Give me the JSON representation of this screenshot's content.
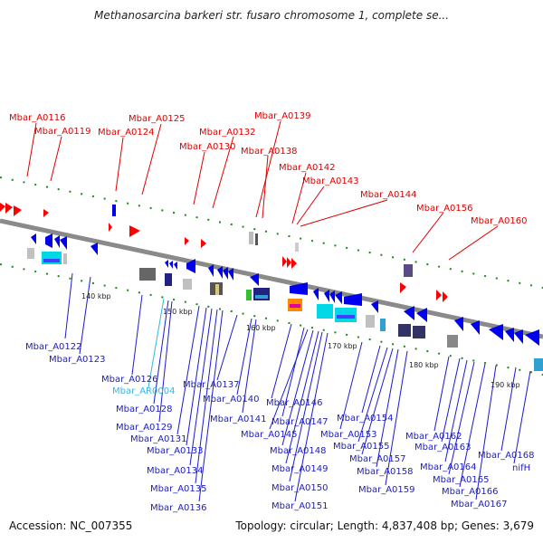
{
  "title": "Methanosarcina barkeri str. fusaro chromosome 1, complete se...",
  "footer": {
    "accession": "Accession: NC_007355",
    "topology": "Topology: circular; Length: 4,837,408 bp; Genes: 3,679"
  },
  "scale_labels": [
    "140 kbp",
    "150 kbp",
    "160 kbp",
    "170 kbp",
    "180 kbp",
    "190 kbp"
  ],
  "red_labels": [
    "Mbar_A0116",
    "Mbar_A0119",
    "Mbar_A0125",
    "Mbar_A0124",
    "Mbar_A0132",
    "Mbar_A0130",
    "Mbar_A0139",
    "Mbar_A0138",
    "Mbar_A0142",
    "Mbar_A0143",
    "Mbar_A0144",
    "Mbar_A0156",
    "Mbar_A0160"
  ],
  "blue_labels": [
    "Mbar_A0122",
    "Mbar_A0123",
    "Mbar_A0126",
    "Mbar_AR0004",
    "Mbar_A0128",
    "Mbar_A0129",
    "Mbar_A0131",
    "Mbar_A0133",
    "Mbar_A0134",
    "Mbar_A0135",
    "Mbar_A0136",
    "Mbar_A0137",
    "Mbar_A0140",
    "Mbar_A0141",
    "Mbar_A0146",
    "Mbar_A0147",
    "Mbar_A0145",
    "Mbar_A0148",
    "Mbar_A0149",
    "Mbar_A0150",
    "Mbar_A0151",
    "Mbar_A0153",
    "Mbar_A0154",
    "Mbar_A0155",
    "Mbar_A0157",
    "Mbar_A0158",
    "Mbar_A0159",
    "Mbar_A0162",
    "Mbar_A0163",
    "Mbar_A0164",
    "Mbar_A0165",
    "Mbar_A0166",
    "Mbar_A0167",
    "Mbar_A0168",
    "nifH"
  ],
  "colors": {
    "forward": "#ff0000",
    "reverse": "#0000ee",
    "rna": "#30b8e8",
    "backbone": "#8a8a8a",
    "tick": "#1a8a1a"
  }
}
